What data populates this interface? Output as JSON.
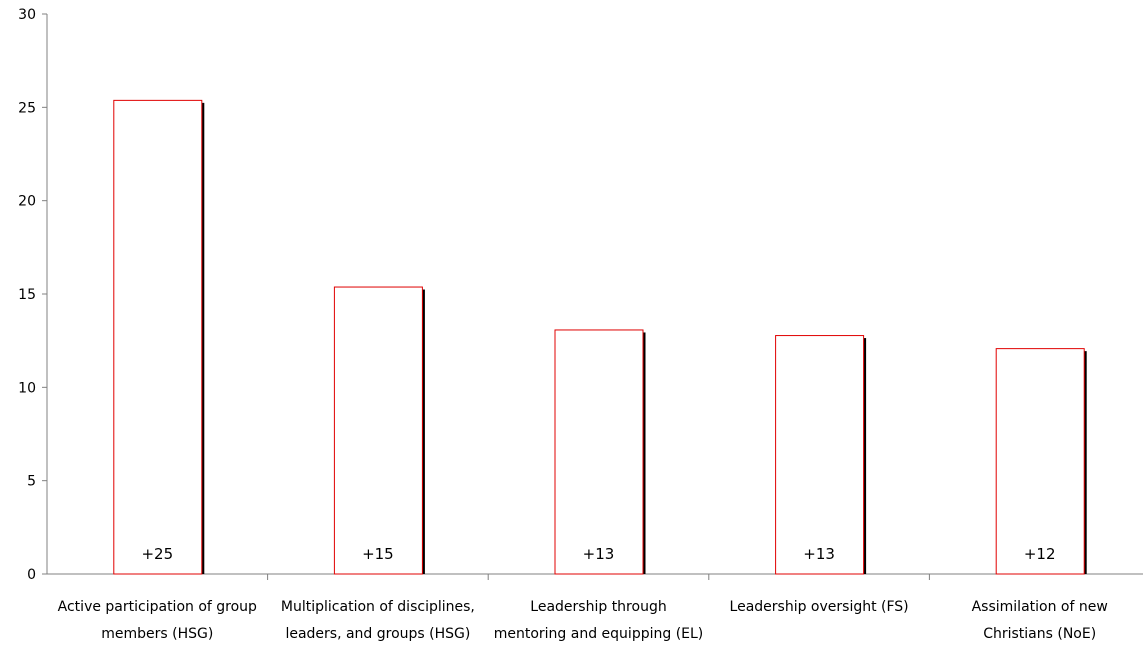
{
  "chart_data": {
    "type": "bar",
    "title": "",
    "xlabel": "",
    "ylabel": "",
    "ylim": [
      0,
      30
    ],
    "yticks": [
      0,
      5,
      10,
      15,
      20,
      25,
      30
    ],
    "grid": false,
    "legend": "none",
    "colors": {
      "bar_edge": "#e00000",
      "bar_fill": "#ffffff",
      "bar_shadow": "#000000",
      "axis": "#808080"
    },
    "categories": [
      [
        "Active participation of group",
        "members (HSG)"
      ],
      [
        "Multiplication of disciplines,",
        "leaders, and groups (HSG)"
      ],
      [
        "Leadership through",
        "mentoring and equipping (EL)"
      ],
      [
        "Leadership oversight (FS)"
      ],
      [
        "Assimilation of new",
        "Christians (NoE)"
      ]
    ],
    "values": [
      25.4,
      15.4,
      13.1,
      12.8,
      12.1
    ],
    "data_labels": [
      "+25",
      "+15",
      "+13",
      "+13",
      "+12"
    ]
  }
}
